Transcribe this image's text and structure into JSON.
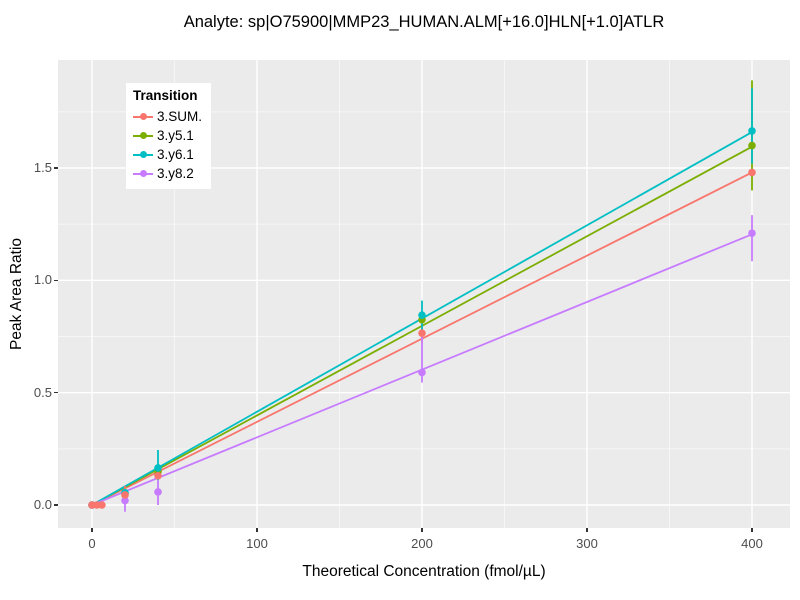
{
  "title": "Analyte: sp|O75900|MMP23_HUMAN.ALM[+16.0]HLN[+1.0]ATLR",
  "axes": {
    "x_title": "Theoretical Concentration (fmol/µL)",
    "y_title": "Peak Area Ratio",
    "x_tick_labels": [
      "0",
      "100",
      "200",
      "300",
      "400"
    ],
    "y_tick_labels": [
      "0.0",
      "0.5",
      "1.0",
      "1.5"
    ]
  },
  "legend": {
    "title": "Transition"
  },
  "colors": {
    "panel_background": "#EBEBEB",
    "major_grid": "#FFFFFF",
    "minor_grid": "rgba(255,255,255,0.55)",
    "axis_text": "#4d4d4d"
  },
  "chart_data": {
    "type": "scatter",
    "title": "Analyte: sp|O75900|MMP23_HUMAN.ALM[+16.0]HLN[+1.0]ATLR",
    "xlabel": "Theoretical Concentration (fmol/µL)",
    "ylabel": "Peak Area Ratio",
    "xlim": [
      -20.6,
      423
    ],
    "ylim": [
      -0.1,
      1.98
    ],
    "x_major_ticks": [
      0,
      100,
      200,
      300,
      400
    ],
    "x_minor_ticks": [
      50,
      150,
      250,
      350
    ],
    "y_major_ticks": [
      0,
      0.5,
      1.0,
      1.5
    ],
    "y_minor_ticks": [
      0.25,
      0.75,
      1.25,
      1.75
    ],
    "grid": "on",
    "legend_position": "inside-top-left",
    "legend_title": "Transition",
    "series": [
      {
        "name": "3.SUM.",
        "color": "#F8766D",
        "line": [
          [
            0,
            0
          ],
          [
            400,
            1.48
          ]
        ],
        "points": [
          [
            0,
            0
          ],
          [
            3,
            0
          ],
          [
            6,
            0
          ],
          [
            20,
            0.045
          ],
          [
            40,
            0.13
          ],
          [
            200,
            0.765
          ],
          [
            400,
            1.48
          ]
        ],
        "error_bars": [
          [
            20,
            0.005,
            0.085
          ],
          [
            200,
            0.72,
            0.81
          ]
        ]
      },
      {
        "name": "3.y5.1",
        "color": "#7CAE00",
        "line": [
          [
            0,
            0
          ],
          [
            400,
            1.595
          ]
        ],
        "points": [
          [
            0,
            0
          ],
          [
            20,
            0.05
          ],
          [
            40,
            0.148
          ],
          [
            200,
            0.825
          ],
          [
            400,
            1.6
          ]
        ],
        "error_bars": [
          [
            400,
            1.4,
            1.89
          ]
        ]
      },
      {
        "name": "3.y6.1",
        "color": "#00BFC4",
        "line": [
          [
            0,
            0
          ],
          [
            400,
            1.66
          ]
        ],
        "points": [
          [
            0,
            0
          ],
          [
            20,
            0.055
          ],
          [
            40,
            0.165
          ],
          [
            200,
            0.845
          ],
          [
            400,
            1.665
          ]
        ],
        "error_bars": [
          [
            40,
            0.11,
            0.245
          ],
          [
            200,
            0.78,
            0.91
          ],
          [
            400,
            1.52,
            1.855
          ]
        ]
      },
      {
        "name": "3.y8.2",
        "color": "#C77CFF",
        "line": [
          [
            0,
            0
          ],
          [
            400,
            1.205
          ]
        ],
        "points": [
          [
            0,
            0
          ],
          [
            20,
            0.02
          ],
          [
            40,
            0.058
          ],
          [
            200,
            0.59
          ],
          [
            400,
            1.21
          ]
        ],
        "error_bars": [
          [
            20,
            -0.03,
            0.065
          ],
          [
            40,
            0.0,
            0.11
          ],
          [
            200,
            0.545,
            0.75
          ],
          [
            400,
            1.085,
            1.29
          ]
        ]
      }
    ]
  }
}
